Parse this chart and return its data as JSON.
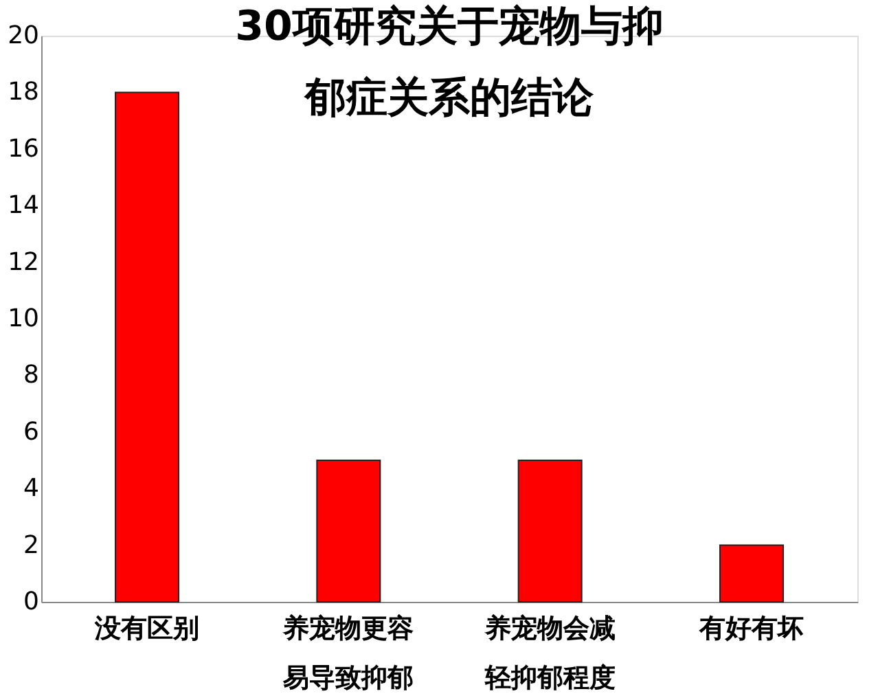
{
  "chart_data": {
    "type": "bar",
    "title": "30项研究关于宠物与抑郁症关系的结论",
    "categories": [
      "没有区别",
      "养宠物更容易导致抑郁",
      "养宠物会减轻抑郁程度",
      "有好有坏"
    ],
    "values": [
      18,
      5,
      5,
      2
    ],
    "color": "#ff0000",
    "ylim": [
      0,
      20
    ],
    "yticks": [
      0,
      2,
      4,
      6,
      8,
      10,
      12,
      14,
      16,
      18,
      20
    ],
    "grid": false
  }
}
